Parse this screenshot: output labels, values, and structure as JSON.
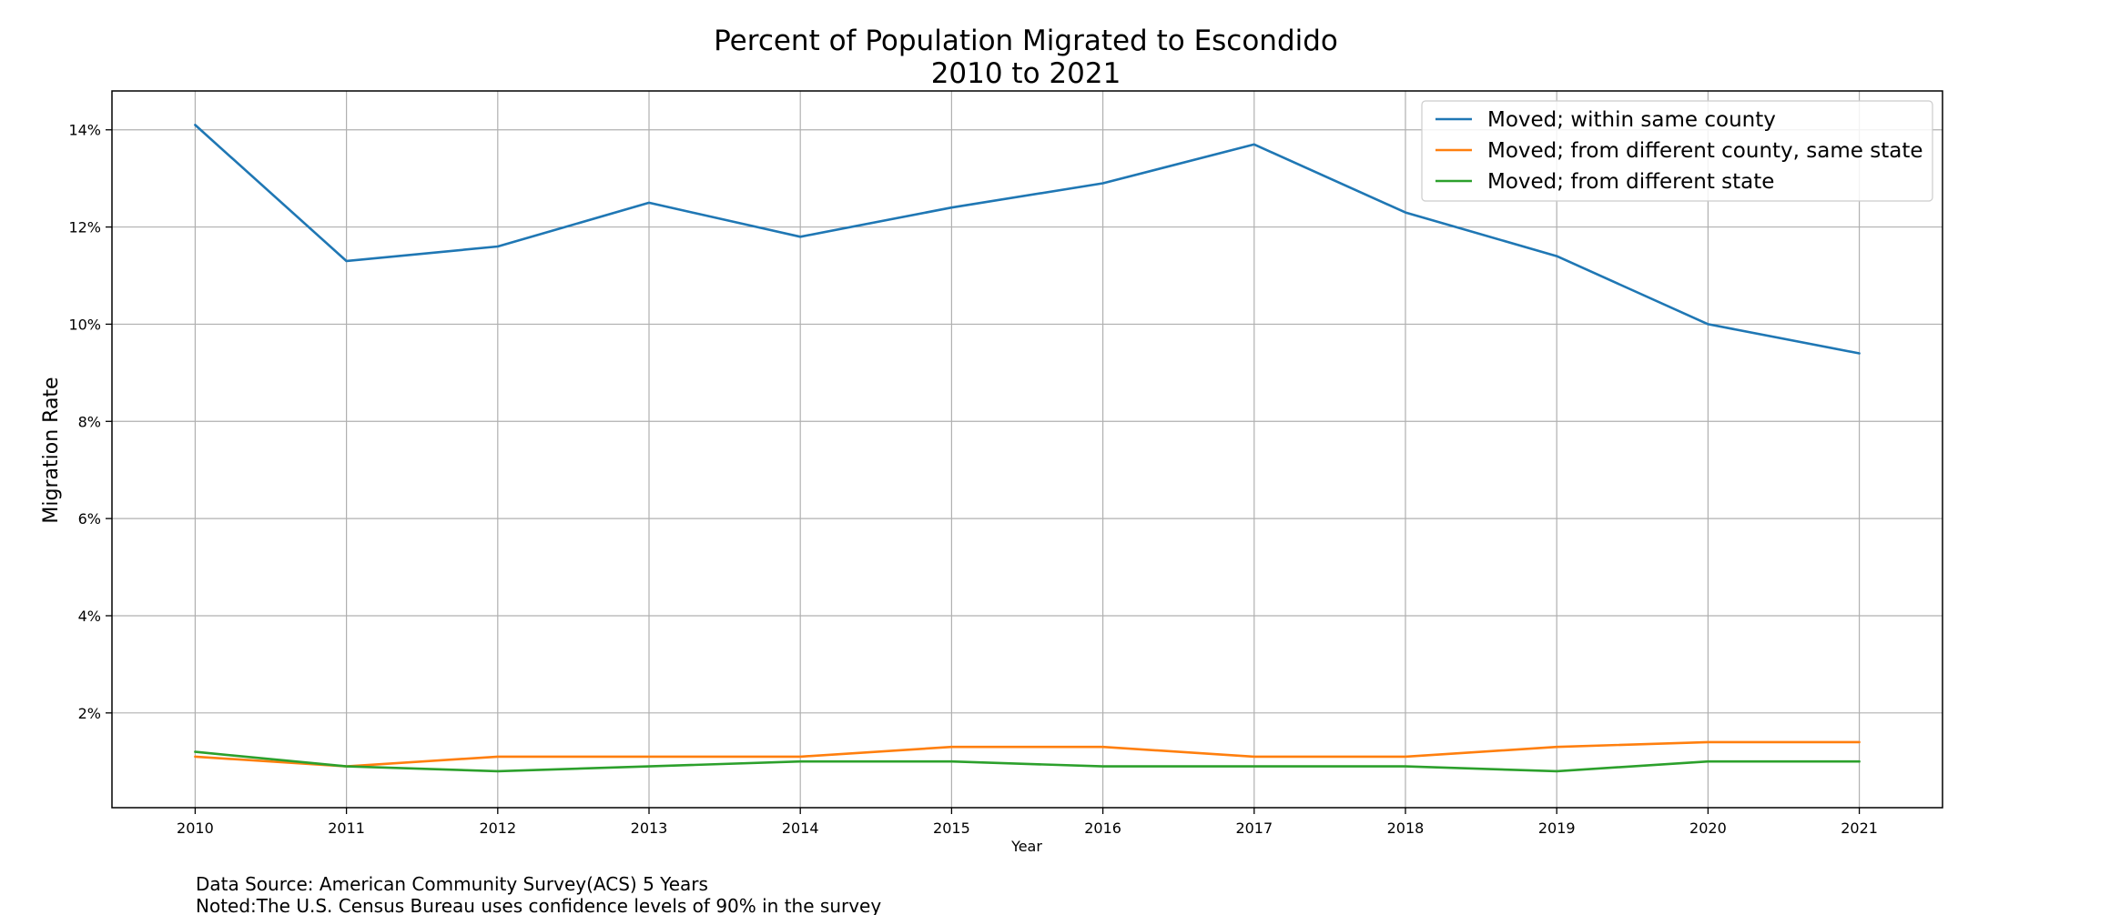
{
  "chart_data": {
    "type": "line",
    "title_line1": "Percent of Population Migrated to Escondido",
    "title_line2": "2010 to 2021",
    "xlabel": "Year",
    "ylabel": "Migration Rate",
    "x": [
      2010,
      2011,
      2012,
      2013,
      2014,
      2015,
      2016,
      2017,
      2018,
      2019,
      2020,
      2021
    ],
    "x_tick_labels": [
      "2010",
      "2011",
      "2012",
      "2013",
      "2014",
      "2015",
      "2016",
      "2017",
      "2018",
      "2019",
      "2020",
      "2021"
    ],
    "y_ticks": [
      2,
      4,
      6,
      8,
      10,
      12,
      14
    ],
    "y_tick_labels": [
      "2%",
      "4%",
      "6%",
      "8%",
      "10%",
      "12%",
      "14%"
    ],
    "ylim": [
      0.05,
      14.8
    ],
    "xlim": [
      2009.45,
      2021.55
    ],
    "grid": true,
    "legend_position": "top-right",
    "series": [
      {
        "name": "Moved; within same county",
        "color": "#1f77b4",
        "values": [
          14.1,
          11.3,
          11.6,
          12.5,
          11.8,
          12.4,
          12.9,
          13.7,
          12.3,
          11.4,
          10.0,
          9.4
        ]
      },
      {
        "name": "Moved; from different county, same state",
        "color": "#ff7f0e",
        "values": [
          1.1,
          0.9,
          1.1,
          1.1,
          1.1,
          1.3,
          1.3,
          1.1,
          1.1,
          1.3,
          1.4,
          1.4
        ]
      },
      {
        "name": "Moved; from different state",
        "color": "#2ca02c",
        "values": [
          1.2,
          0.9,
          0.8,
          0.9,
          1.0,
          1.0,
          0.9,
          0.9,
          0.9,
          0.8,
          1.0,
          1.0
        ]
      }
    ]
  },
  "footnote": {
    "source": "Data Source: American Community Survey(ACS) 5 Years",
    "note": "Noted:The U.S. Census Bureau uses confidence levels of 90% in the survey"
  }
}
